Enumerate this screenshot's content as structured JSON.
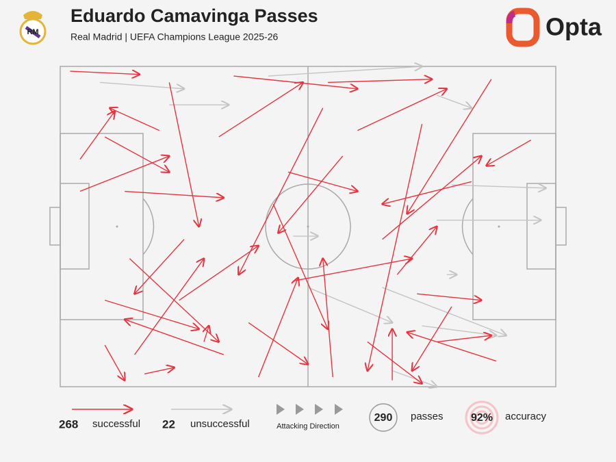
{
  "chart_data": {
    "type": "pass-map",
    "title": "Eduardo Camavinga Passes",
    "subtitle": "Real Madrid | UEFA Champions League 2025-26",
    "brand": "Opta",
    "attacking_direction": "Attacking Direction",
    "xlim": [
      0,
      100
    ],
    "ylim": [
      0,
      100
    ],
    "series": [
      {
        "name": "successful",
        "count": 268,
        "color": "#e63440",
        "x": [
          2,
          33,
          9,
          17,
          9,
          88,
          87,
          95,
          40,
          55,
          4,
          20,
          67,
          76,
          29,
          83,
          4,
          15,
          73,
          35,
          47,
          24,
          53,
          68,
          22,
          60,
          43,
          13,
          79,
          65,
          32,
          9,
          38,
          72,
          57,
          25,
          54,
          46,
          14,
          62
        ],
        "y": [
          1.5,
          90,
          87,
          96,
          73,
          92,
          4,
          23,
          97,
          97,
          29,
          20,
          98,
          86,
          86,
          36,
          39,
          90,
          18,
          3,
          67,
          73,
          13,
          65,
          5,
          20,
          43,
          39,
          75,
          54,
          22,
          22,
          80,
          71,
          28,
          54,
          5,
          33,
          60,
          86
        ],
        "end_x": [
          16,
          13,
          13,
          23,
          28,
          70,
          70,
          86,
          48,
          53,
          11,
          10,
          67,
          87,
          30,
          65,
          22,
          29,
          62,
          60,
          71,
          40,
          36,
          76,
          28,
          78,
          54,
          33,
          71,
          85,
          49,
          22,
          50,
          85,
          44,
          15,
          75,
          60,
          32,
          73
        ],
        "end_y": [
          2.5,
          79,
          98,
          94,
          82,
          83,
          46,
          31,
          66,
          60,
          14,
          13,
          82,
          84,
          81,
          43,
          28,
          60,
          95,
          7,
          60,
          56,
          65,
          50,
          50,
          7,
          82,
          41,
          95,
          28,
          5,
          33,
          93,
          73,
          52,
          71,
          4,
          39,
          86,
          99
        ]
      },
      {
        "name": "unsuccessful",
        "count": 22,
        "color": "#c4c4c4",
        "x": [
          8,
          22,
          42,
          79,
          76,
          47,
          65,
          50,
          73,
          67,
          76,
          78
        ],
        "y": [
          5,
          12,
          3,
          37,
          48,
          53,
          69,
          69,
          81,
          95,
          9,
          65
        ],
        "end_x": [
          25,
          34,
          73,
          98,
          97,
          52,
          90,
          67,
          88,
          76,
          83,
          80
        ],
        "end_y": [
          7,
          12,
          0,
          38,
          48,
          53,
          84,
          80,
          84,
          100,
          13,
          65
        ]
      }
    ],
    "total": {
      "value": 290,
      "label": "passes"
    },
    "accuracy": {
      "value": 92,
      "value_label": "92%",
      "label": "accuracy"
    }
  }
}
